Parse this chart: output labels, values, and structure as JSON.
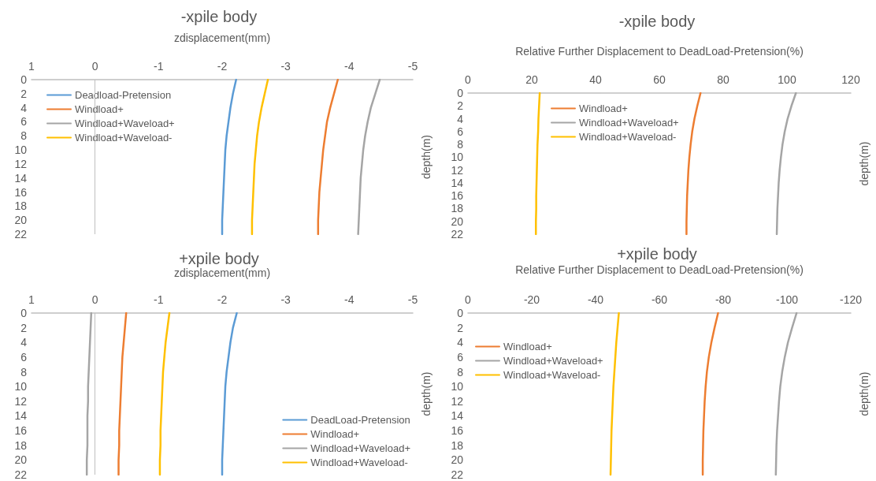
{
  "chart_data": [
    {
      "type": "line",
      "title": "-xpile body",
      "xlabel": "zdisplacement(mm)",
      "ylabel": "depth(m)",
      "ref_lines": [
        {
          "axis": "x",
          "value": 0,
          "color": "#bfbfbf"
        }
      ],
      "xlim": [
        1,
        -5
      ],
      "xticks": [
        1,
        0,
        -1,
        -2,
        -3,
        -4,
        -5
      ],
      "ylim": [
        22,
        0
      ],
      "yticks": [
        0,
        2,
        4,
        6,
        8,
        10,
        12,
        14,
        16,
        18,
        20,
        22
      ],
      "grid": false,
      "legend": "top left",
      "marker": "none",
      "line_style": "solid",
      "series": [
        {
          "name": "Deadload-Pretension",
          "color": "#5b9bd5",
          "x": [
            -2.22,
            -2.17,
            -2.13,
            -2.1,
            -2.07,
            -2.05,
            -2.04,
            -2.03,
            -2.02,
            -2.01,
            -2.0,
            -2.0
          ],
          "values": [
            0,
            2,
            4,
            6,
            8,
            10,
            12,
            14,
            16,
            18,
            20,
            22
          ]
        },
        {
          "name": "Windload+",
          "color": "#ed7d31",
          "x": [
            -3.82,
            -3.76,
            -3.7,
            -3.65,
            -3.62,
            -3.59,
            -3.57,
            -3.55,
            -3.53,
            -3.52,
            -3.51,
            -3.51
          ],
          "values": [
            0,
            2,
            4,
            6,
            8,
            10,
            12,
            14,
            16,
            18,
            20,
            22
          ]
        },
        {
          "name": "Windload+Waveload+",
          "color": "#a5a5a5",
          "x": [
            -4.48,
            -4.41,
            -4.34,
            -4.29,
            -4.25,
            -4.22,
            -4.2,
            -4.18,
            -4.17,
            -4.16,
            -4.15,
            -4.14
          ],
          "values": [
            0,
            2,
            4,
            6,
            8,
            10,
            12,
            14,
            16,
            18,
            20,
            22
          ]
        },
        {
          "name": "Windload+Waveload-",
          "color": "#ffc000",
          "x": [
            -2.72,
            -2.67,
            -2.62,
            -2.58,
            -2.55,
            -2.53,
            -2.51,
            -2.5,
            -2.49,
            -2.48,
            -2.47,
            -2.47
          ],
          "values": [
            0,
            2,
            4,
            6,
            8,
            10,
            12,
            14,
            16,
            18,
            20,
            22
          ]
        }
      ]
    },
    {
      "type": "line",
      "title": "-xpile body",
      "xlabel": "Relative Further Displacement to DeadLoad-Pretension(%)",
      "ylabel": "depth(m)",
      "xlim": [
        0,
        120
      ],
      "xticks": [
        0,
        20,
        40,
        60,
        80,
        100,
        120
      ],
      "ylim": [
        22,
        0
      ],
      "yticks": [
        0,
        2,
        4,
        6,
        8,
        10,
        12,
        14,
        16,
        18,
        20,
        22
      ],
      "grid": false,
      "legend": "top left",
      "marker": "none",
      "line_style": "solid",
      "series": [
        {
          "name": "Windload+",
          "color": "#ed7d31",
          "x": [
            72.9,
            71.9,
            71.0,
            70.3,
            69.8,
            69.4,
            69.1,
            68.9,
            68.7,
            68.6,
            68.5,
            68.5
          ],
          "values": [
            0,
            2,
            4,
            6,
            8,
            10,
            12,
            14,
            16,
            18,
            20,
            22
          ]
        },
        {
          "name": "Windload+Waveload+",
          "color": "#a5a5a5",
          "x": [
            102.8,
            101.4,
            100.2,
            99.3,
            98.6,
            98.1,
            97.7,
            97.4,
            97.2,
            97.0,
            96.9,
            96.8
          ],
          "values": [
            0,
            2,
            4,
            6,
            8,
            10,
            12,
            14,
            16,
            18,
            20,
            22
          ]
        },
        {
          "name": "Windload+Waveload-",
          "color": "#ffc000",
          "x": [
            22.5,
            22.3,
            22.1,
            22.0,
            21.8,
            21.7,
            21.6,
            21.5,
            21.4,
            21.4,
            21.3,
            21.3
          ],
          "values": [
            0,
            2,
            4,
            6,
            8,
            10,
            12,
            14,
            16,
            18,
            20,
            22
          ]
        }
      ]
    },
    {
      "type": "line",
      "title": "+xpile body",
      "xlabel": "zdisplacement(mm)",
      "ylabel": "depth(m)",
      "ref_lines": [
        {
          "axis": "x",
          "value": 0,
          "color": "#bfbfbf"
        }
      ],
      "xlim": [
        1,
        -5
      ],
      "xticks": [
        1,
        0,
        -1,
        -2,
        -3,
        -4,
        -5
      ],
      "ylim": [
        22,
        0
      ],
      "yticks": [
        0,
        2,
        4,
        6,
        8,
        10,
        12,
        14,
        16,
        18,
        20,
        22
      ],
      "grid": false,
      "legend": "bottom right",
      "marker": "none",
      "line_style": "solid",
      "series": [
        {
          "name": "DeadLoad-Pretension",
          "color": "#5b9bd5",
          "x": [
            -2.23,
            -2.17,
            -2.13,
            -2.1,
            -2.07,
            -2.05,
            -2.04,
            -2.03,
            -2.02,
            -2.01,
            -2.0,
            -2.0
          ],
          "values": [
            0,
            2,
            4,
            6,
            8,
            10,
            12,
            14,
            16,
            18,
            20,
            22
          ]
        },
        {
          "name": "Windload+",
          "color": "#ed7d31",
          "x": [
            -0.49,
            -0.47,
            -0.45,
            -0.43,
            -0.42,
            -0.41,
            -0.4,
            -0.39,
            -0.38,
            -0.38,
            -0.37,
            -0.37
          ],
          "values": [
            0,
            2,
            4,
            6,
            8,
            10,
            12,
            14,
            16,
            18,
            20,
            22
          ]
        },
        {
          "name": "Windload+Waveload+",
          "color": "#a5a5a5",
          "x": [
            0.06,
            0.07,
            0.08,
            0.09,
            0.1,
            0.11,
            0.11,
            0.12,
            0.12,
            0.12,
            0.13,
            0.13
          ],
          "values": [
            0,
            2,
            4,
            6,
            8,
            10,
            12,
            14,
            16,
            18,
            20,
            22
          ]
        },
        {
          "name": "Windload+Waveload-",
          "color": "#ffc000",
          "x": [
            -1.17,
            -1.14,
            -1.11,
            -1.09,
            -1.07,
            -1.06,
            -1.05,
            -1.04,
            -1.03,
            -1.03,
            -1.02,
            -1.02
          ],
          "values": [
            0,
            2,
            4,
            6,
            8,
            10,
            12,
            14,
            16,
            18,
            20,
            22
          ]
        }
      ]
    },
    {
      "type": "line",
      "title": "+xpile body",
      "xlabel": "Relative Further Displacement to DeadLoad-Pretension(%)",
      "ylabel": "depth(m)",
      "xlim": [
        0,
        -120
      ],
      "xticks": [
        0,
        -20,
        -40,
        -60,
        -80,
        -100,
        -120
      ],
      "ylim": [
        22,
        0
      ],
      "yticks": [
        0,
        2,
        4,
        6,
        8,
        10,
        12,
        14,
        16,
        18,
        20,
        22
      ],
      "grid": false,
      "legend": "left",
      "marker": "none",
      "line_style": "solid",
      "series": [
        {
          "name": "Windload+",
          "color": "#ed7d31",
          "x": [
            -78.4,
            -77.3,
            -76.3,
            -75.5,
            -74.9,
            -74.5,
            -74.2,
            -74.0,
            -73.8,
            -73.7,
            -73.6,
            -73.6
          ],
          "values": [
            0,
            2,
            4,
            6,
            8,
            10,
            12,
            14,
            16,
            18,
            20,
            22
          ]
        },
        {
          "name": "Windload+Waveload+",
          "color": "#a5a5a5",
          "x": [
            -103.0,
            -101.6,
            -100.3,
            -99.3,
            -98.5,
            -97.9,
            -97.5,
            -97.2,
            -96.9,
            -96.7,
            -96.6,
            -96.5
          ],
          "values": [
            0,
            2,
            4,
            6,
            8,
            10,
            12,
            14,
            16,
            18,
            20,
            22
          ]
        },
        {
          "name": "Windload+Waveload-",
          "color": "#ffc000",
          "x": [
            -47.3,
            -46.9,
            -46.5,
            -46.2,
            -45.9,
            -45.6,
            -45.4,
            -45.2,
            -45.0,
            -44.9,
            -44.8,
            -44.7
          ],
          "values": [
            0,
            2,
            4,
            6,
            8,
            10,
            12,
            14,
            16,
            18,
            20,
            22
          ]
        }
      ]
    }
  ]
}
